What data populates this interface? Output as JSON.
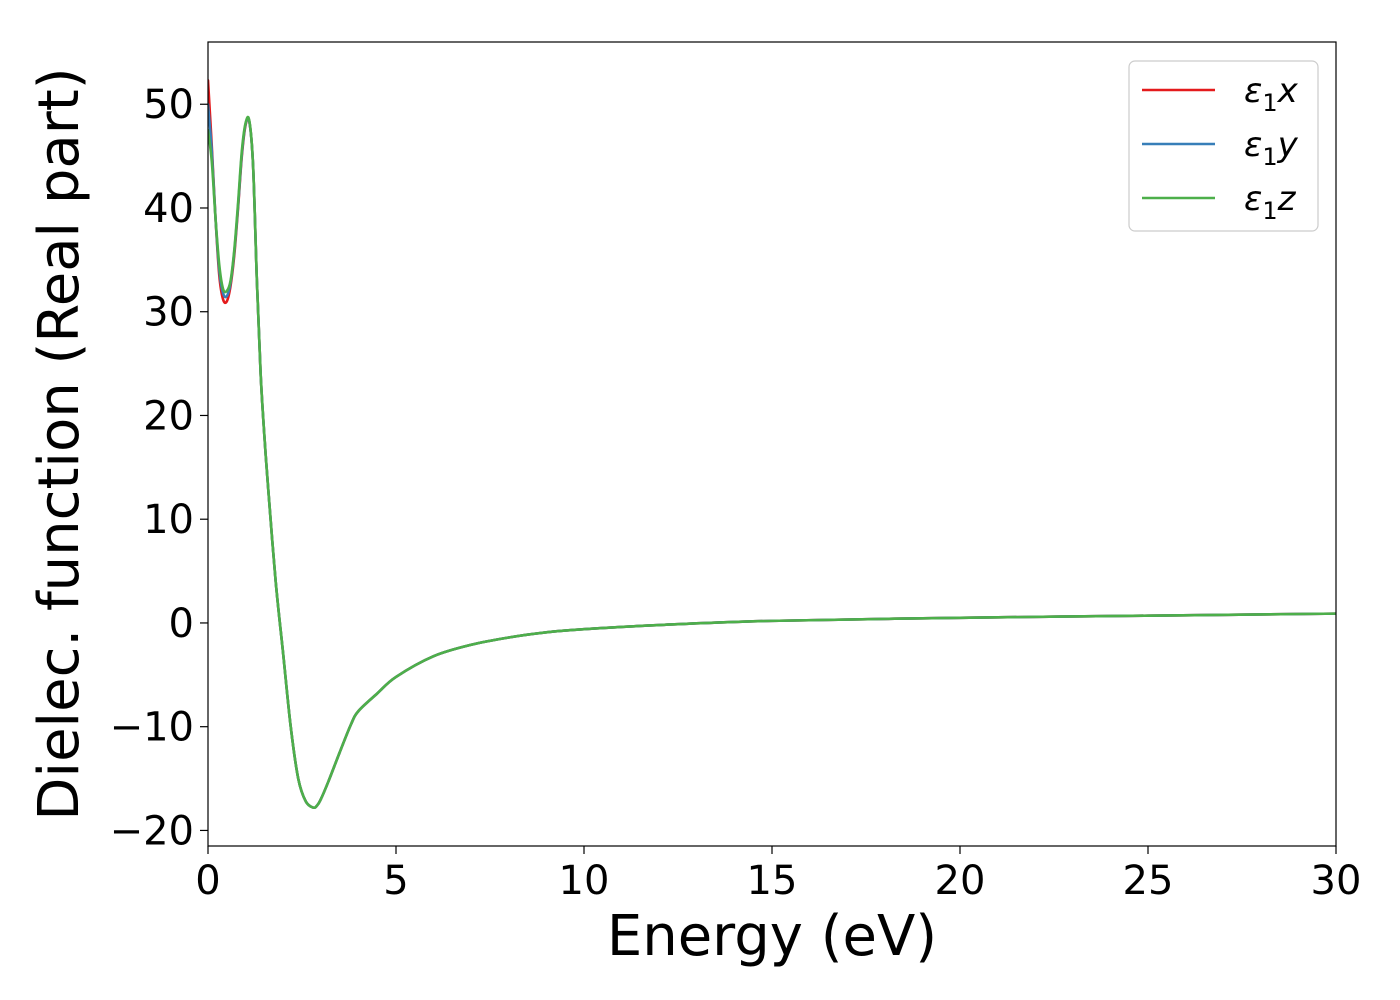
{
  "chart_data": {
    "type": "line",
    "xlabel": "Energy (eV)",
    "ylabel": "Dielec. function (Real part)",
    "xlim": [
      0,
      30
    ],
    "ylim": [
      -21.5,
      56
    ],
    "xticks": [
      0,
      5,
      10,
      15,
      20,
      25,
      30
    ],
    "xtick_labels": [
      "0",
      "5",
      "10",
      "15",
      "20",
      "25",
      "30"
    ],
    "yticks": [
      -20,
      -10,
      0,
      10,
      20,
      30,
      40,
      50
    ],
    "ytick_labels": [
      "−20",
      "−10",
      "0",
      "10",
      "20",
      "30",
      "40",
      "50"
    ],
    "grid": false,
    "legend_position": "top-right",
    "series": [
      {
        "name": "ε1x",
        "legend": {
          "base": "ε",
          "sub": "1",
          "suffix": "x"
        },
        "color": "#e41a1c",
        "x": [
          0,
          0.1,
          0.2,
          0.3,
          0.4,
          0.5,
          0.6,
          0.7,
          0.8,
          0.9,
          1.0,
          1.1,
          1.2,
          1.3,
          1.4,
          1.5,
          1.6,
          1.8,
          2.0,
          2.2,
          2.4,
          2.6,
          2.8,
          2.9,
          3.0,
          3.2,
          3.5,
          3.8,
          4.0,
          4.5,
          5,
          6,
          7,
          8,
          9,
          10,
          12,
          15,
          20,
          25,
          30
        ],
        "y": [
          52.3,
          46.0,
          39.0,
          33.5,
          31.2,
          31.0,
          32.5,
          35.5,
          40.0,
          45.0,
          48.0,
          48.3,
          44.0,
          33.0,
          24.0,
          18.0,
          13.0,
          4.0,
          -3.0,
          -10.0,
          -15.0,
          -17.2,
          -17.8,
          -17.6,
          -17.0,
          -15.3,
          -12.5,
          -9.8,
          -8.5,
          -6.8,
          -5.2,
          -3.2,
          -2.1,
          -1.4,
          -0.9,
          -0.6,
          -0.2,
          0.2,
          0.5,
          0.7,
          0.9
        ]
      },
      {
        "name": "ε1y",
        "legend": {
          "base": "ε",
          "sub": "1",
          "suffix": "y"
        },
        "color": "#377eb8",
        "x": [
          0,
          0.1,
          0.2,
          0.3,
          0.4,
          0.5,
          0.6,
          0.7,
          0.8,
          0.9,
          1.0,
          1.1,
          1.2,
          1.3,
          1.4,
          1.5,
          1.6,
          1.8,
          2.0,
          2.2,
          2.4,
          2.6,
          2.8,
          2.9,
          3.0,
          3.2,
          3.5,
          3.8,
          4.0,
          4.5,
          5,
          6,
          7,
          8,
          9,
          10,
          12,
          15,
          20,
          25,
          30
        ],
        "y": [
          50.0,
          45.5,
          39.0,
          34.0,
          31.8,
          31.5,
          32.8,
          35.8,
          40.2,
          45.2,
          48.1,
          48.3,
          44.0,
          33.0,
          24.0,
          18.0,
          13.0,
          4.0,
          -3.0,
          -10.0,
          -15.0,
          -17.2,
          -17.8,
          -17.6,
          -17.0,
          -15.3,
          -12.5,
          -9.8,
          -8.5,
          -6.8,
          -5.2,
          -3.2,
          -2.1,
          -1.4,
          -0.9,
          -0.6,
          -0.2,
          0.2,
          0.5,
          0.7,
          0.9
        ]
      },
      {
        "name": "ε1z",
        "legend": {
          "base": "ε",
          "sub": "1",
          "suffix": "z"
        },
        "color": "#4daf4a",
        "x": [
          0,
          0.1,
          0.2,
          0.3,
          0.4,
          0.5,
          0.6,
          0.7,
          0.8,
          0.9,
          1.0,
          1.1,
          1.2,
          1.3,
          1.4,
          1.5,
          1.6,
          1.8,
          2.0,
          2.2,
          2.4,
          2.6,
          2.8,
          2.9,
          3.0,
          3.2,
          3.5,
          3.8,
          4.0,
          4.5,
          5,
          6,
          7,
          8,
          9,
          10,
          12,
          15,
          20,
          25,
          30
        ],
        "y": [
          47.5,
          44.5,
          39.0,
          34.5,
          32.2,
          32.0,
          33.0,
          36.0,
          40.5,
          45.5,
          48.2,
          48.4,
          44.0,
          33.0,
          24.0,
          18.0,
          13.0,
          4.0,
          -3.0,
          -10.0,
          -15.0,
          -17.2,
          -17.8,
          -17.6,
          -17.0,
          -15.3,
          -12.5,
          -9.8,
          -8.5,
          -6.8,
          -5.2,
          -3.2,
          -2.1,
          -1.4,
          -0.9,
          -0.6,
          -0.2,
          0.2,
          0.5,
          0.7,
          0.9
        ]
      }
    ]
  }
}
